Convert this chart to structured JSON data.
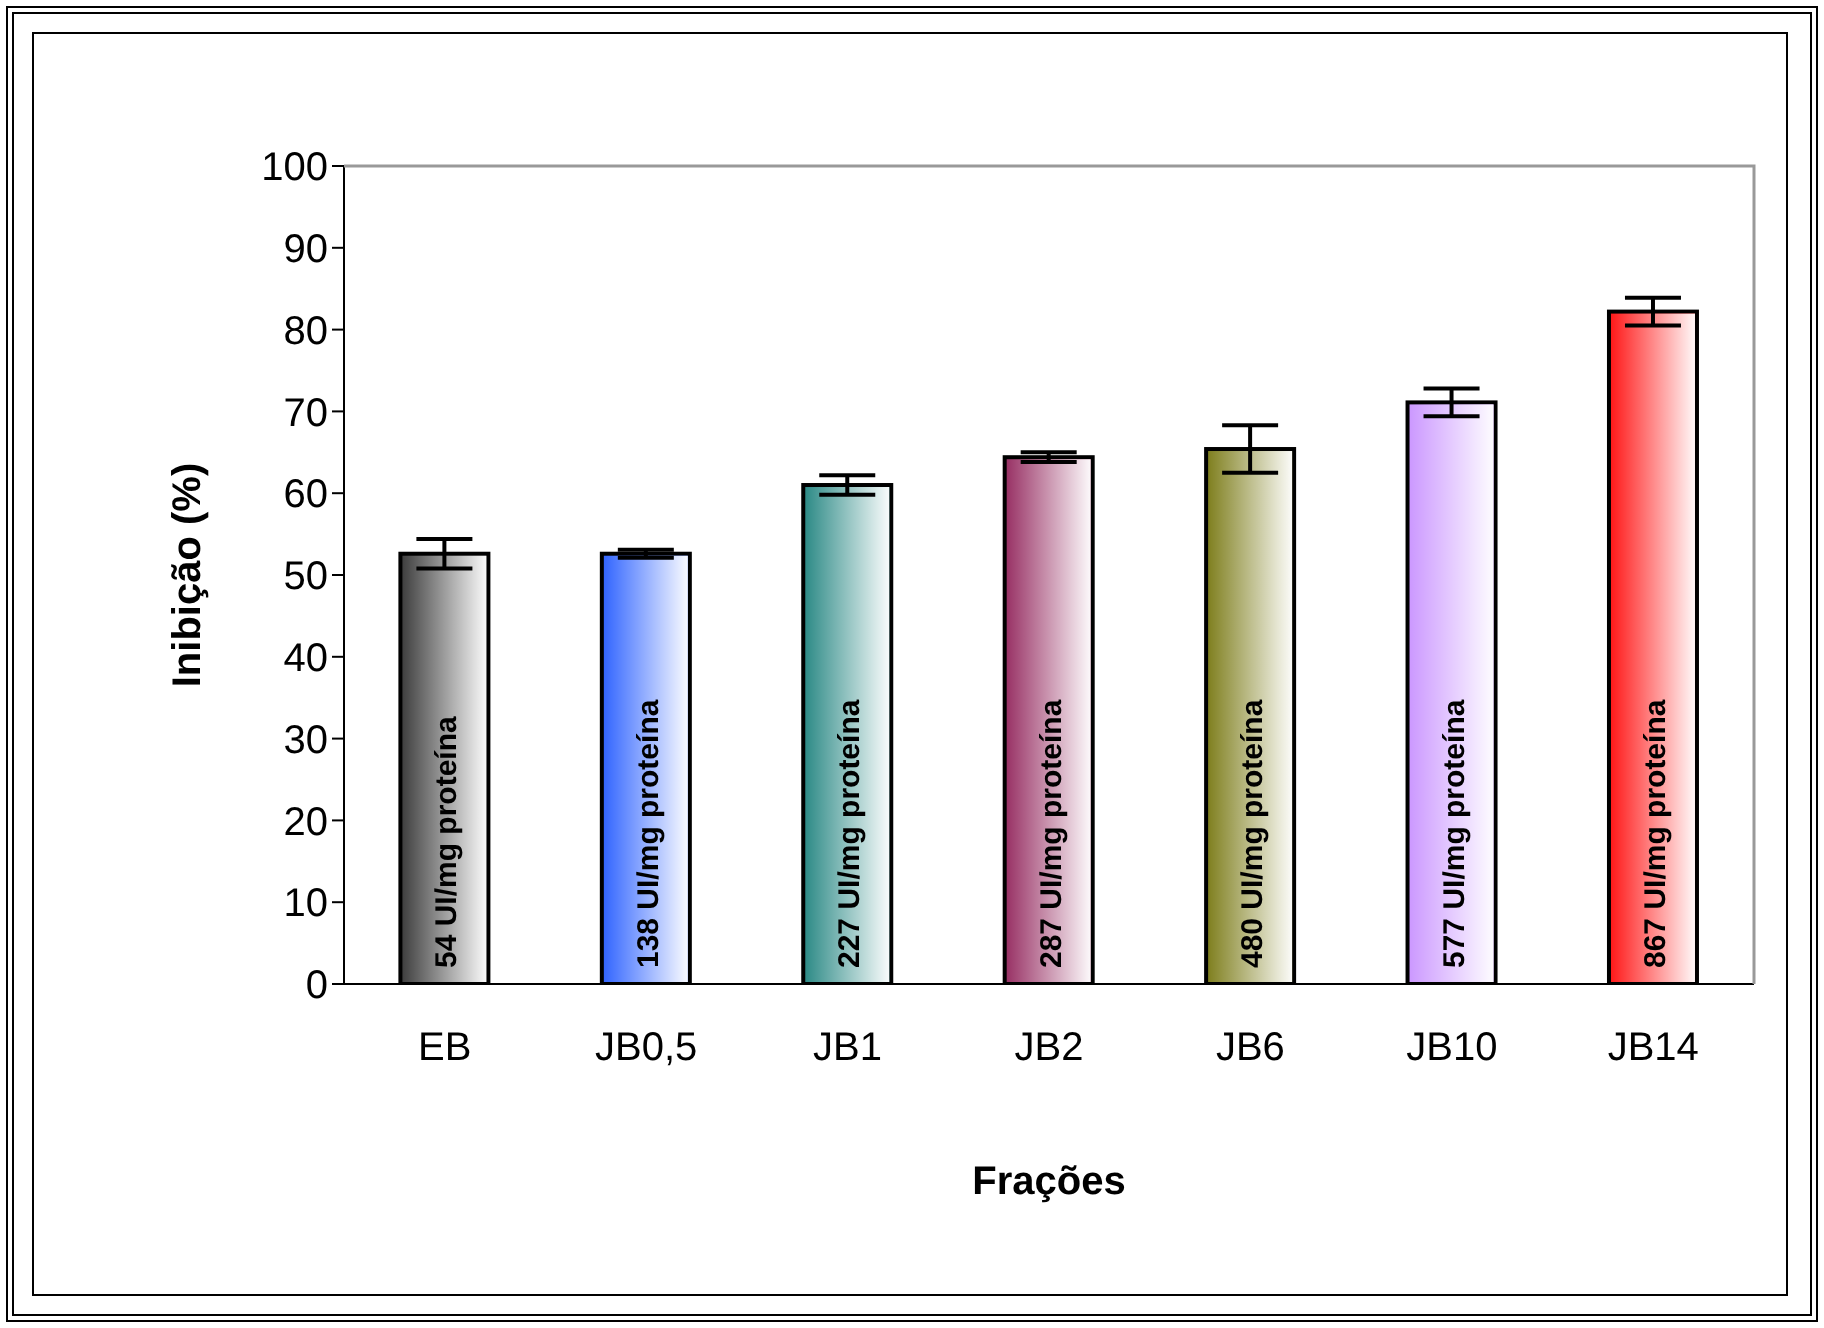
{
  "chart_data": {
    "type": "bar",
    "xlabel": "Frações",
    "ylabel": "Inibição (%)",
    "categories": [
      "EB",
      "JB0,5",
      "JB1",
      "JB2",
      "JB6",
      "JB10",
      "JB14"
    ],
    "values": [
      52.6,
      52.6,
      61.0,
      64.4,
      65.4,
      71.1,
      82.2
    ],
    "errors": [
      1.8,
      0.5,
      1.2,
      0.6,
      2.9,
      1.7,
      1.7
    ],
    "colors": [
      "#404040",
      "#3366ff",
      "#2e8b87",
      "#993366",
      "#808020",
      "#cc99ff",
      "#ff1a1a"
    ],
    "ylim": [
      0,
      100
    ],
    "yticks": [
      0,
      10,
      20,
      30,
      40,
      50,
      60,
      70,
      80,
      90,
      100
    ],
    "grid": false,
    "legend": false,
    "annotations": [
      "54 UI/mg proteína",
      "138 UI/mg proteína",
      "227 UI/mg proteína",
      "287 UI/mg proteína",
      "480 UI/mg proteína",
      "577 UI/mg proteína",
      "867 UI/mg proteína"
    ]
  }
}
